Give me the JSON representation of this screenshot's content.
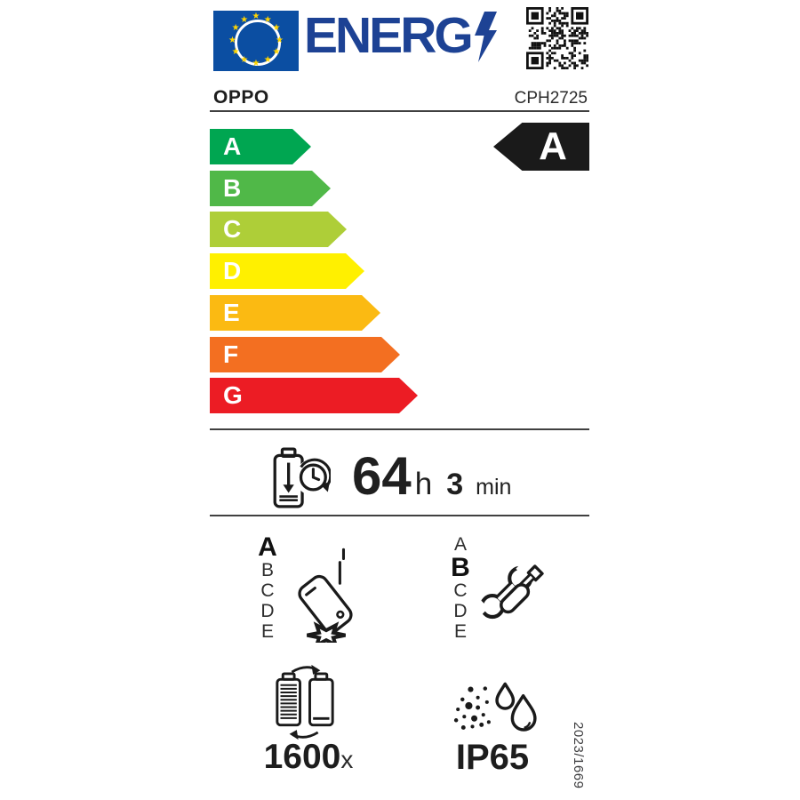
{
  "header": {
    "energy_logo": "ENERG",
    "brand": "OPPO",
    "model": "CPH2725"
  },
  "rating_arrow": {
    "grade": "A",
    "color": "#1a1a1a"
  },
  "efficiency_scale": {
    "grades": [
      {
        "letter": "A",
        "color": "#00A651"
      },
      {
        "letter": "B",
        "color": "#50B848"
      },
      {
        "letter": "C",
        "color": "#AECE38"
      },
      {
        "letter": "D",
        "color": "#FFF000"
      },
      {
        "letter": "E",
        "color": "#FBBA12"
      },
      {
        "letter": "F",
        "color": "#F36F21"
      },
      {
        "letter": "G",
        "color": "#EC1C24"
      }
    ]
  },
  "battery_endurance": {
    "hours": "64",
    "hours_unit": "h",
    "minutes": "3",
    "minutes_unit": "min"
  },
  "drop_resistance": {
    "classes": [
      "A",
      "B",
      "C",
      "D",
      "E"
    ],
    "selected": "A"
  },
  "repairability": {
    "classes": [
      "A",
      "B",
      "C",
      "D",
      "E"
    ],
    "selected": "B"
  },
  "battery_cycles": {
    "value": "1600",
    "unit": "x"
  },
  "ingress_protection": {
    "value": "IP65"
  },
  "regulation_number": "2023/1669",
  "colors": {
    "flag_blue": "#0B4EA2",
    "star_yellow": "#FFD500",
    "energy_blue": "#1D4294",
    "ink": "#1a1a1a"
  }
}
